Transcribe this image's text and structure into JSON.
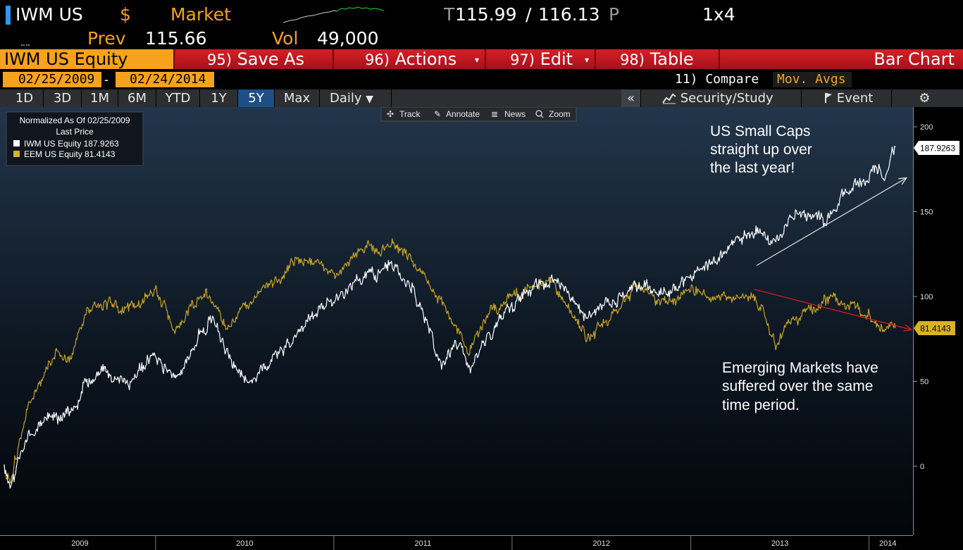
{
  "header": {
    "ticker": "IWM US",
    "currency": "$",
    "market": "Market",
    "quote_t": "T",
    "bid": "115.99",
    "slash": "/",
    "ask": "116.13",
    "quote_p": "P",
    "size": "1x4",
    "size_x": "x",
    "prev_label": "Prev",
    "prev_value": "115.66",
    "vol_label": "Vol",
    "vol_value": "49,000"
  },
  "menubar": {
    "security": "IWM US Equity",
    "items": [
      {
        "num": "95)",
        "label": "Save As"
      },
      {
        "num": "96)",
        "label": "Actions"
      },
      {
        "num": "97)",
        "label": "Edit"
      },
      {
        "num": "98)",
        "label": "Table"
      }
    ],
    "chart_type": "Bar Chart"
  },
  "daterow": {
    "start": "02/25/2009",
    "dash": "-",
    "end": "02/24/2014",
    "compare": "11) Compare",
    "mov_avgs": "Mov. Avgs"
  },
  "periods": {
    "items": [
      "1D",
      "3D",
      "1M",
      "6M",
      "YTD",
      "1Y",
      "5Y",
      "Max"
    ],
    "active": "5Y",
    "frequency": "Daily",
    "collapse": "«",
    "security_study": "Security/Study",
    "event": "Event"
  },
  "toolbar": {
    "track": "Track",
    "annotate": "Annotate",
    "news": "News",
    "zoom": "Zoom"
  },
  "legend": {
    "line1": "Normalized As Of 02/25/2009",
    "line2": "Last Price",
    "iwm": "IWM US Equity 187.9263",
    "eem": "EEM US Equity   81.4143"
  },
  "annotations": {
    "us_small_caps": [
      "US Small Caps",
      "straight up over",
      "the last year!"
    ],
    "emerging": [
      "Emerging Markets have",
      "suffered over the same",
      "time period."
    ]
  },
  "colors": {
    "iwm": "#ffffff",
    "eem": "#c8a21e",
    "trend_up": "#d8d8d8",
    "trend_down": "#e01818",
    "accent": "#f7a21b",
    "menu_red": "#c0141c"
  },
  "chart_data": {
    "type": "line",
    "yticks": [
      0,
      50,
      100,
      150,
      200
    ],
    "ylim": [
      -25,
      210
    ],
    "xlabels": [
      "2009",
      "2010",
      "2011",
      "2012",
      "2013",
      "2014"
    ],
    "last_values": {
      "iwm": "187.9263",
      "eem": "81.4143"
    },
    "series": [
      {
        "name": "IWM US Equity",
        "x": [
          "2009-02-25",
          "2009-03-09",
          "2009-04-15",
          "2009-06-10",
          "2009-07-08",
          "2009-08-10",
          "2009-09-20",
          "2009-11-02",
          "2009-12-31",
          "2010-02-08",
          "2010-04-23",
          "2010-07-02",
          "2010-09-15",
          "2010-12-31",
          "2011-02-20",
          "2011-04-29",
          "2011-06-15",
          "2011-08-08",
          "2011-09-20",
          "2011-10-03",
          "2011-11-15",
          "2012-01-15",
          "2012-03-27",
          "2012-06-04",
          "2012-09-14",
          "2012-11-15",
          "2013-01-15",
          "2013-03-15",
          "2013-05-21",
          "2013-06-24",
          "2013-08-05",
          "2013-10-08",
          "2013-11-29",
          "2014-01-15",
          "2014-02-03",
          "2014-02-24"
        ],
        "values": [
          0,
          -12,
          18,
          30,
          27,
          45,
          58,
          48,
          64,
          52,
          88,
          48,
          70,
          98,
          108,
          118,
          104,
          62,
          70,
          55,
          78,
          98,
          110,
          88,
          108,
          99,
          118,
          126,
          142,
          132,
          148,
          146,
          165,
          175,
          170,
          187.9263
        ]
      },
      {
        "name": "EEM US Equity",
        "x": [
          "2009-02-25",
          "2009-03-09",
          "2009-04-15",
          "2009-06-10",
          "2009-07-08",
          "2009-08-10",
          "2009-09-20",
          "2009-10-20",
          "2009-12-31",
          "2010-02-08",
          "2010-04-15",
          "2010-05-25",
          "2010-09-15",
          "2010-11-08",
          "2010-12-31",
          "2011-02-20",
          "2011-04-29",
          "2011-06-15",
          "2011-08-08",
          "2011-10-03",
          "2011-11-15",
          "2012-01-15",
          "2012-03-20",
          "2012-06-04",
          "2012-09-14",
          "2012-11-15",
          "2013-01-15",
          "2013-03-15",
          "2013-05-08",
          "2013-06-24",
          "2013-08-05",
          "2013-10-22",
          "2013-12-20",
          "2014-02-03",
          "2014-02-24"
        ],
        "values": [
          0,
          -10,
          35,
          68,
          62,
          88,
          100,
          92,
          102,
          82,
          102,
          80,
          115,
          122,
          112,
          125,
          132,
          120,
          95,
          70,
          90,
          104,
          108,
          76,
          105,
          98,
          104,
          100,
          102,
          72,
          88,
          100,
          92,
          78,
          81.4143
        ]
      }
    ]
  }
}
